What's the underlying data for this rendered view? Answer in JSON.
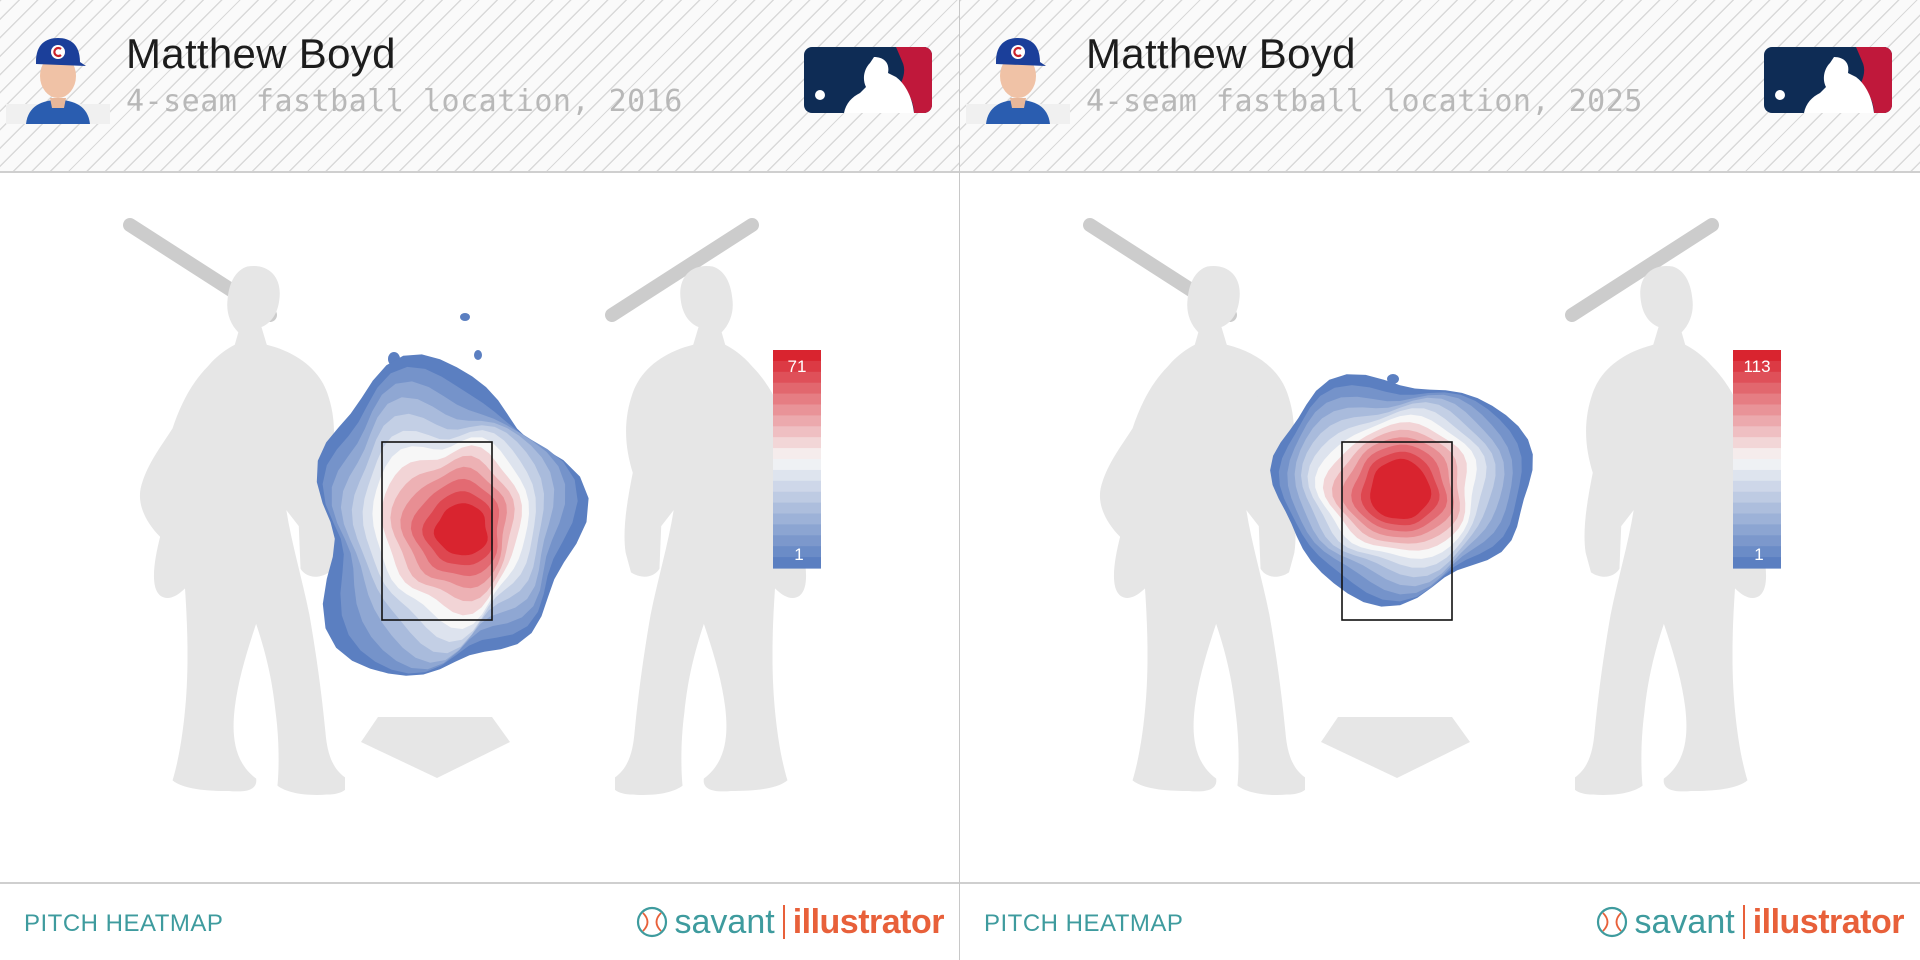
{
  "panels": [
    {
      "player_name": "Matthew Boyd",
      "subtitle": "4-seam fastball location, 2016",
      "footer_label": "PITCH HEATMAP",
      "brand_left": "savant",
      "brand_right": "illustrator",
      "scale_max": "71",
      "scale_min": "1"
    },
    {
      "player_name": "Matthew Boyd",
      "subtitle": "4-seam fastball location, 2025",
      "footer_label": "PITCH HEATMAP",
      "brand_left": "savant",
      "brand_right": "illustrator",
      "scale_max": "113",
      "scale_min": "1"
    }
  ],
  "colors": {
    "heat_high": "#d9242f",
    "heat_mid": "#f7f7f7",
    "heat_low": "#5b7fc1",
    "accent_teal": "#3e9b9e",
    "accent_orange": "#e8603a",
    "mlb_blue": "#0e2c55",
    "mlb_red": "#c0183b"
  },
  "chart_data": [
    {
      "type": "heatmap",
      "title": "Matthew Boyd",
      "subtitle": "4-seam fastball location, 2016",
      "color_scale": {
        "min": 1,
        "max": 71
      },
      "strike_zone": "shown",
      "hotspot": "center of the strike zone, slightly right of middle",
      "contour_levels": 13
    },
    {
      "type": "heatmap",
      "title": "Matthew Boyd",
      "subtitle": "4-seam fastball location, 2025",
      "color_scale": {
        "min": 1,
        "max": 113
      },
      "strike_zone": "shown",
      "hotspot": "upper-middle of the strike zone",
      "contour_levels": 13
    }
  ]
}
